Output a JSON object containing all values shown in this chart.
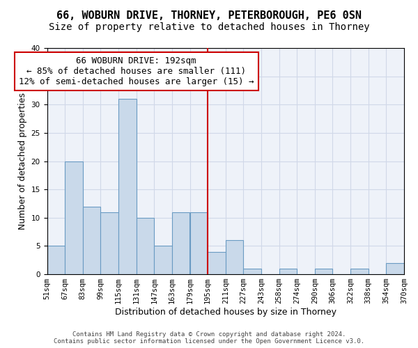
{
  "title_line1": "66, WOBURN DRIVE, THORNEY, PETERBOROUGH, PE6 0SN",
  "title_line2": "Size of property relative to detached houses in Thorney",
  "xlabel": "Distribution of detached houses by size in Thorney",
  "ylabel": "Number of detached properties",
  "bin_labels": [
    "51sqm",
    "67sqm",
    "83sqm",
    "99sqm",
    "115sqm",
    "131sqm",
    "147sqm",
    "163sqm",
    "179sqm",
    "195sqm",
    "211sqm",
    "227sqm",
    "243sqm",
    "258sqm",
    "274sqm",
    "290sqm",
    "306sqm",
    "322sqm",
    "338sqm",
    "354sqm",
    "370sqm"
  ],
  "bar_values": [
    5,
    20,
    12,
    11,
    31,
    10,
    5,
    11,
    11,
    4,
    6,
    1,
    0,
    1,
    0,
    1,
    0,
    1,
    0,
    2
  ],
  "bar_color": "#c9d9ea",
  "bar_edge_color": "#6a9bc3",
  "vline_color": "#cc0000",
  "vline_x_index": 9,
  "annotation_text": "66 WOBURN DRIVE: 192sqm\n← 85% of detached houses are smaller (111)\n12% of semi-detached houses are larger (15) →",
  "annotation_box_edge": "#cc0000",
  "ylim": [
    0,
    40
  ],
  "yticks": [
    0,
    5,
    10,
    15,
    20,
    25,
    30,
    35,
    40
  ],
  "grid_color": "#d0d8e8",
  "bg_color": "#eef2f9",
  "footer_line1": "Contains HM Land Registry data © Crown copyright and database right 2024.",
  "footer_line2": "Contains public sector information licensed under the Open Government Licence v3.0.",
  "title_fontsize": 11,
  "subtitle_fontsize": 10,
  "axis_label_fontsize": 9,
  "tick_fontsize": 7.5,
  "annotation_fontsize": 9
}
